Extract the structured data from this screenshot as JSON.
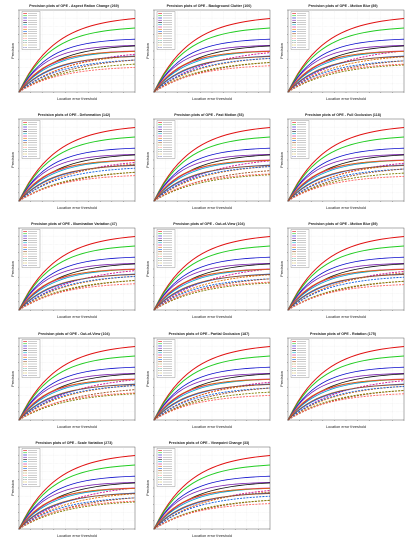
{
  "chart_data": [
    {
      "type": "line",
      "title": "Precision plots of OPE - Aspect Ration Change (269)",
      "xlabel": "Location error threshold",
      "ylabel": "Precision"
    },
    {
      "type": "line",
      "title": "Precision plots of OPE - Background Clutter (100)",
      "xlabel": "Location error threshold",
      "ylabel": "Precision"
    },
    {
      "type": "line",
      "title": "Precision plots of OPE - Motion Blur (89)",
      "xlabel": "Location error threshold",
      "ylabel": "Precision"
    },
    {
      "type": "line",
      "title": "Precision plots of OPE - Deformation (142)",
      "xlabel": "Location error threshold",
      "ylabel": "Precision"
    },
    {
      "type": "line",
      "title": "Precision plots of OPE - Fast Motion (53)",
      "xlabel": "Location error threshold",
      "ylabel": "Precision"
    },
    {
      "type": "line",
      "title": "Precision plots of OPE - Full Occlusion (118)",
      "xlabel": "Location error threshold",
      "ylabel": "Precision"
    },
    {
      "type": "line",
      "title": "Precision plots of OPE - Illumination Variation (47)",
      "xlabel": "Location error threshold",
      "ylabel": "Precision"
    },
    {
      "type": "line",
      "title": "Precision plots of OPE - Out-of-View (104)",
      "xlabel": "Location error threshold",
      "ylabel": "Precision"
    },
    {
      "type": "line",
      "title": "Precision plots of OPE - Motion Blur (89)",
      "xlabel": "Location error threshold",
      "ylabel": "Precision"
    },
    {
      "type": "line",
      "title": "Precision plots of OPE - Out-of-View (104)",
      "xlabel": "Location error threshold",
      "ylabel": "Precision"
    },
    {
      "type": "line",
      "title": "Precision plots of OPE - Partial Occlusion (187)",
      "xlabel": "Location error threshold",
      "ylabel": "Precision"
    },
    {
      "type": "line",
      "title": "Precision plots of OPE - Rotation (175)",
      "xlabel": "Location error threshold",
      "ylabel": "Precision"
    },
    {
      "type": "line",
      "title": "Precision plots of OPE - Scale Variation (273)",
      "xlabel": "Location error threshold",
      "ylabel": "Precision"
    },
    {
      "type": "line",
      "title": "Precision plots of OPE - Viewpoint Change (33)",
      "xlabel": "Location error threshold",
      "ylabel": "Precision"
    }
  ],
  "colors": {
    "series": [
      "#e01010",
      "#22cc22",
      "#1010cc",
      "#7a1fb0",
      "#111111",
      "#00a8c8",
      "#d01090",
      "#e07000",
      "#1060e0",
      "#a05020",
      "#808000",
      "#ff6060",
      "#20a080",
      "#606060",
      "#c0a000",
      "#4040a0"
    ],
    "grid": "#cccccc"
  }
}
